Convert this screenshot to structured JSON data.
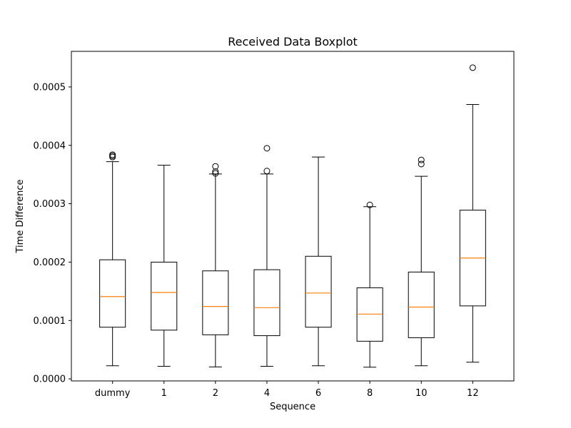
{
  "chart_data": {
    "type": "boxplot",
    "title": "Received Data Boxplot",
    "xlabel": "Sequence",
    "ylabel": "Time Difference",
    "ylim": [
      -3.5e-06,
      0.000561
    ],
    "yticks": [
      0,
      0.0001,
      0.0002,
      0.0003,
      0.0004,
      0.0005
    ],
    "ytick_labels": [
      "0.0000",
      "0.0001",
      "0.0002",
      "0.0003",
      "0.0004",
      "0.0005"
    ],
    "grid": false,
    "colors": {
      "box": "#000000",
      "median": "#ff7f0e",
      "flier": "#000000"
    },
    "categories": [
      "dummy",
      "1",
      "2",
      "4",
      "6",
      "8",
      "10",
      "12"
    ],
    "boxes": [
      {
        "label": "dummy",
        "whisker_low": 2.25e-05,
        "q1": 8.85e-05,
        "median": 0.000141,
        "q3": 0.000204,
        "whisker_high": 0.000372,
        "fliers": [
          0.00038,
          0.000382,
          0.000384
        ]
      },
      {
        "label": "1",
        "whisker_low": 2.15e-05,
        "q1": 8.35e-05,
        "median": 0.000148,
        "q3": 0.0002,
        "whisker_high": 0.000366,
        "fliers": []
      },
      {
        "label": "2",
        "whisker_low": 2.05e-05,
        "q1": 7.55e-05,
        "median": 0.000124,
        "q3": 0.000185,
        "whisker_high": 0.000351,
        "fliers": [
          0.000352,
          0.000355,
          0.000364
        ]
      },
      {
        "label": "4",
        "whisker_low": 2.15e-05,
        "q1": 7.4e-05,
        "median": 0.000122,
        "q3": 0.000187,
        "whisker_high": 0.000351,
        "fliers": [
          0.000356,
          0.000395
        ]
      },
      {
        "label": "6",
        "whisker_low": 2.25e-05,
        "q1": 8.85e-05,
        "median": 0.000147,
        "q3": 0.00021,
        "whisker_high": 0.00038,
        "fliers": []
      },
      {
        "label": "8",
        "whisker_low": 2e-05,
        "q1": 6.45e-05,
        "median": 0.000111,
        "q3": 0.000156,
        "whisker_high": 0.000295,
        "fliers": [
          0.000298
        ]
      },
      {
        "label": "10",
        "whisker_low": 2.25e-05,
        "q1": 7.05e-05,
        "median": 0.000123,
        "q3": 0.000183,
        "whisker_high": 0.000347,
        "fliers": [
          0.000368,
          0.000375
        ]
      },
      {
        "label": "12",
        "whisker_low": 2.85e-05,
        "q1": 0.000125,
        "median": 0.000207,
        "q3": 0.000289,
        "whisker_high": 0.00047,
        "fliers": [
          0.000533
        ]
      }
    ]
  }
}
